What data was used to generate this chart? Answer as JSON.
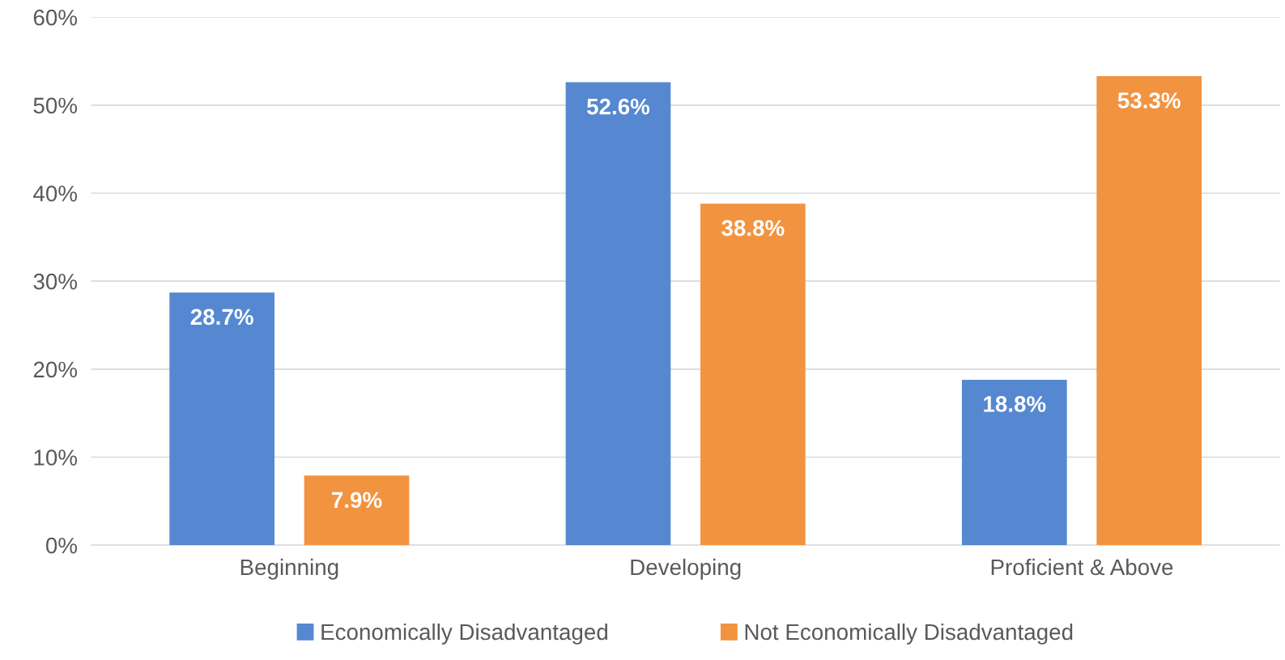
{
  "chart_data": {
    "type": "bar",
    "categories": [
      "Beginning",
      "Developing",
      "Proficient & Above"
    ],
    "series": [
      {
        "name": "Economically Disadvantaged",
        "color": "#5588d0",
        "values": [
          28.7,
          52.6,
          18.8
        ],
        "value_labels": [
          "28.7%",
          "52.6%",
          "18.8%"
        ]
      },
      {
        "name": "Not Economically Disadvantaged",
        "color": "#f29340",
        "values": [
          7.9,
          38.8,
          53.3
        ],
        "value_labels": [
          "7.9%",
          "38.8%",
          "53.3%"
        ]
      }
    ],
    "ylim": [
      0,
      60
    ],
    "yticks": [
      {
        "value": 0,
        "label": "0%"
      },
      {
        "value": 10,
        "label": "10%"
      },
      {
        "value": 20,
        "label": "20%"
      },
      {
        "value": 30,
        "label": "30%"
      },
      {
        "value": 40,
        "label": "40%"
      },
      {
        "value": 50,
        "label": "50%"
      },
      {
        "value": 60,
        "label": "60%"
      }
    ],
    "grid": "y",
    "legend": "bottom"
  }
}
